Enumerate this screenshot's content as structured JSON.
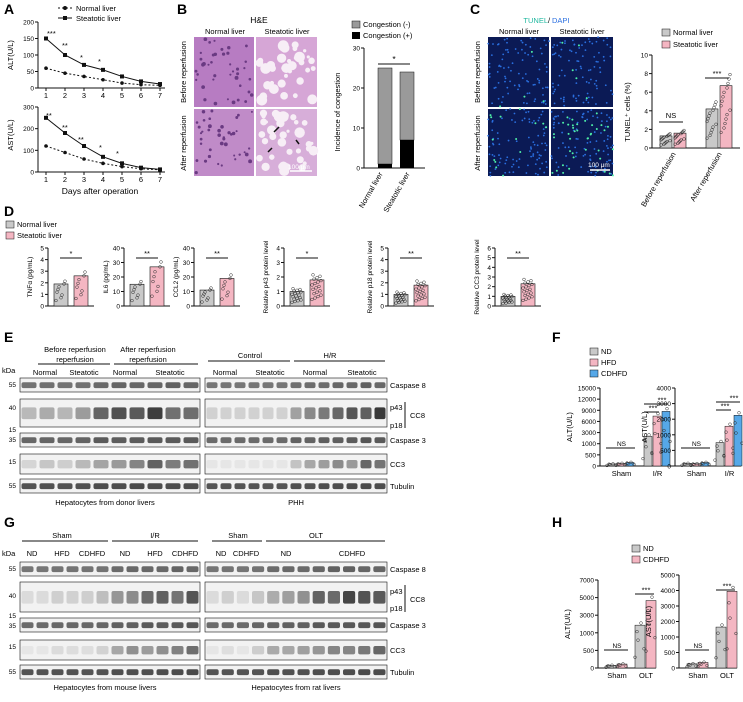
{
  "panel_letters": [
    "A",
    "B",
    "C",
    "D",
    "E",
    "F",
    "G",
    "H"
  ],
  "colors": {
    "normal": "#c9c9c9",
    "steatotic": "#f4b6c2",
    "nd": "#c9c9c9",
    "hfd": "#f4b6c2",
    "cdhfd": "#56a8e8",
    "congestion_neg": "#9a9a9a",
    "congestion_pos": "#000000",
    "tunel": "#22b8a0",
    "dapi": "#2a6fe0",
    "he": "#c98cc4"
  },
  "panelA": {
    "legend": [
      "Normal liver",
      "Steatotic liver"
    ],
    "alt": {
      "ylabel": "ALT(U/L)",
      "yticks": [
        "200",
        "150",
        "100",
        "50",
        "0"
      ],
      "sig": [
        "***",
        "**",
        "*",
        "*"
      ]
    },
    "ast": {
      "ylabel": "AST(U/L)",
      "yticks": [
        "300",
        "200",
        "100",
        "0"
      ],
      "sig": [
        "**",
        "**",
        "**",
        "*",
        "*"
      ]
    },
    "xticks": [
      "1",
      "2",
      "3",
      "4",
      "5",
      "6",
      "7"
    ],
    "xlabel": "Days after operation"
  },
  "panelB": {
    "header": "H&E",
    "cols": [
      "Normal liver",
      "Steatotic liver"
    ],
    "rows": [
      "Before reperfusion",
      "After reperfusion"
    ],
    "scale": "100 μm",
    "legend": [
      "Congestion (-)",
      "Congestion (+)"
    ],
    "ylabel": "Incidence of congestion",
    "yticks": [
      "30",
      "20",
      "10",
      "0"
    ],
    "sig": "*",
    "categories": [
      "Normal liver",
      "Steatotic liver"
    ]
  },
  "panelC": {
    "title_tunel": "TUNEL",
    "title_sep": "/",
    "title_dapi": "DAPI",
    "cols": [
      "Normal liver",
      "Steatotic liver"
    ],
    "rows": [
      "Before reperfusion",
      "After reperfusion"
    ],
    "scale": "100 μm",
    "legend": [
      "Normal liver",
      "Steatotic liver"
    ],
    "ylabel": "TUNEL⁺ cells (%)",
    "yticks": [
      "10",
      "8",
      "6",
      "4",
      "2",
      "0"
    ],
    "sig": [
      "NS",
      "***"
    ],
    "categories": [
      "Before reperfusion",
      "After reperfusion"
    ]
  },
  "panelD": {
    "legend": [
      "Normal liver",
      "Steatotic liver"
    ],
    "plots": [
      {
        "ylabel": "TNFα (pg/mL)",
        "yticks": [
          "5",
          "4",
          "3",
          "2",
          "1",
          "0"
        ],
        "sig": "*"
      },
      {
        "ylabel": "IL6 (pg/mL)",
        "yticks": [
          "40",
          "30",
          "20",
          "10",
          "0"
        ],
        "sig": "**"
      },
      {
        "ylabel": "CCL2 (pg/mL)",
        "yticks": [
          "40",
          "30",
          "20",
          "10",
          "0"
        ],
        "sig": "**"
      },
      {
        "ylabel": "Relative p43 protein level",
        "yticks": [
          "4",
          "3",
          "2",
          "1",
          "0"
        ],
        "sig": "*"
      },
      {
        "ylabel": "Relative p18 protein level",
        "yticks": [
          "5",
          "4",
          "3",
          "2",
          "1",
          "0"
        ],
        "sig": "**"
      },
      {
        "ylabel": "Relative CC3 protein level",
        "yticks": [
          "6",
          "5",
          "4",
          "3",
          "2",
          "1",
          "0"
        ],
        "sig": "**"
      }
    ]
  },
  "panelE": {
    "kda": "kDa",
    "group1": [
      "Before reperfusion",
      "After reperfusion"
    ],
    "group2": [
      "Control",
      "H/R"
    ],
    "sub": [
      "Normal",
      "Steatotic",
      "Normal",
      "Steatotic",
      "Normal",
      "Steatotic",
      "Normal",
      "Steatotic"
    ],
    "markers": [
      "55",
      "40",
      "15",
      "35",
      "15",
      "55"
    ],
    "bands": [
      "Caspase 8",
      "p43",
      "p18",
      "CC8",
      "Caspase 3",
      "CC3",
      "Tubulin"
    ],
    "captions": [
      "Hepatocytes from donor livers",
      "PHH"
    ]
  },
  "panelF": {
    "legend": [
      "ND",
      "HFD",
      "CDHFD"
    ],
    "alt": {
      "ylabel": "ALT(U/L)",
      "yticks": [
        "15000",
        "12000",
        "9000",
        "6000",
        "3000",
        "1000",
        "500",
        "0"
      ],
      "sig": [
        "NS",
        "***",
        "***"
      ]
    },
    "ast": {
      "ylabel": "AST(U/L)",
      "yticks": [
        "4000",
        "3000",
        "2000",
        "1000",
        "500",
        "0"
      ],
      "sig": [
        "NS",
        "***",
        "***"
      ]
    },
    "categories": [
      "Sham",
      "I/R"
    ]
  },
  "panelG": {
    "kda": "kDa",
    "groups1": [
      "Sham",
      "I/R"
    ],
    "sub1": [
      "ND",
      "HFD",
      "CDHFD",
      "ND",
      "HFD",
      "CDHFD"
    ],
    "groups2": [
      "Sham",
      "OLT"
    ],
    "sub2": [
      "ND",
      "CDHFD",
      "ND",
      "CDHFD"
    ],
    "markers": [
      "55",
      "40",
      "15",
      "35",
      "15",
      "55"
    ],
    "bands": [
      "Caspase 8",
      "p43",
      "p18",
      "CC8",
      "Caspase 3",
      "CC3",
      "Tubulin"
    ],
    "captions": [
      "Hepatocytes from mouse livers",
      "Hepatocytes from rat livers"
    ]
  },
  "panelH": {
    "legend": [
      "ND",
      "CDHFD"
    ],
    "alt": {
      "ylabel": "ALT(U/L)",
      "yticks": [
        "7000",
        "5000",
        "3000",
        "1000",
        "500",
        "0"
      ],
      "sig": [
        "NS",
        "***"
      ]
    },
    "ast": {
      "ylabel": "AST(U/L)",
      "yticks": [
        "5000",
        "4000",
        "3000",
        "2000",
        "1000",
        "500",
        "0"
      ],
      "sig": [
        "NS",
        "***"
      ]
    },
    "categories": [
      "Sham",
      "OLT"
    ]
  },
  "chart_data": [
    {
      "type": "line",
      "id": "A-ALT",
      "x": [
        1,
        2,
        3,
        4,
        5,
        6,
        7
      ],
      "ylabel": "ALT(U/L)",
      "ylim": [
        0,
        200
      ],
      "series": [
        {
          "name": "Normal liver",
          "values": [
            60,
            45,
            35,
            25,
            15,
            10,
            8
          ]
        },
        {
          "name": "Steatotic liver",
          "values": [
            150,
            100,
            70,
            55,
            35,
            20,
            12
          ]
        }
      ]
    },
    {
      "type": "line",
      "id": "A-AST",
      "x": [
        1,
        2,
        3,
        4,
        5,
        6,
        7
      ],
      "ylabel": "AST(U/L)",
      "xlabel": "Days after operation",
      "ylim": [
        0,
        300
      ],
      "series": [
        {
          "name": "Normal liver",
          "values": [
            120,
            90,
            60,
            40,
            25,
            15,
            10
          ]
        },
        {
          "name": "Steatotic liver",
          "values": [
            250,
            180,
            120,
            70,
            40,
            20,
            12
          ]
        }
      ]
    },
    {
      "type": "bar",
      "id": "B",
      "categories": [
        "Normal liver",
        "Steatotic liver"
      ],
      "ylabel": "Incidence of congestion",
      "ylim": [
        0,
        30
      ],
      "series": [
        {
          "name": "Congestion (-)",
          "values": [
            24,
            17
          ]
        },
        {
          "name": "Congestion (+)",
          "values": [
            1,
            7
          ]
        }
      ]
    },
    {
      "type": "bar",
      "id": "C",
      "categories": [
        "Before reperfusion",
        "After reperfusion"
      ],
      "ylabel": "TUNEL+ cells (%)",
      "ylim": [
        0,
        10
      ],
      "series": [
        {
          "name": "Normal liver",
          "values": [
            1.3,
            4.2
          ]
        },
        {
          "name": "Steatotic liver",
          "values": [
            1.6,
            6.7
          ]
        }
      ]
    },
    {
      "type": "bar",
      "id": "D-TNF",
      "categories": [
        "Normal liver",
        "Steatotic liver"
      ],
      "ylabel": "TNFα (pg/mL)",
      "ylim": [
        0,
        5
      ],
      "values": [
        1.9,
        2.6
      ]
    },
    {
      "type": "bar",
      "id": "D-IL6",
      "categories": [
        "Normal liver",
        "Steatotic liver"
      ],
      "ylabel": "IL6 (pg/mL)",
      "ylim": [
        0,
        40
      ],
      "values": [
        15,
        27
      ]
    },
    {
      "type": "bar",
      "id": "D-CCL2",
      "categories": [
        "Normal liver",
        "Steatotic liver"
      ],
      "ylabel": "CCL2 (pg/mL)",
      "ylim": [
        0,
        40
      ],
      "values": [
        11,
        19
      ]
    },
    {
      "type": "bar",
      "id": "D-p43",
      "categories": [
        "Normal liver",
        "Steatotic liver"
      ],
      "ylabel": "Relative p43 protein level",
      "ylim": [
        0,
        4
      ],
      "values": [
        1,
        1.8
      ]
    },
    {
      "type": "bar",
      "id": "D-p18",
      "categories": [
        "Normal liver",
        "Steatotic liver"
      ],
      "ylabel": "Relative p18 protein level",
      "ylim": [
        0,
        5
      ],
      "values": [
        1,
        1.8
      ]
    },
    {
      "type": "bar",
      "id": "D-CC3",
      "categories": [
        "Normal liver",
        "Steatotic liver"
      ],
      "ylabel": "Relative CC3 protein level",
      "ylim": [
        0,
        6
      ],
      "values": [
        1,
        2.3
      ]
    },
    {
      "type": "bar",
      "id": "F-ALT",
      "categories": [
        "Sham",
        "I/R"
      ],
      "ylabel": "ALT(U/L)",
      "ylim": [
        0,
        15000
      ],
      "series": [
        {
          "name": "ND",
          "values": [
            90,
            2600
          ]
        },
        {
          "name": "HFD",
          "values": [
            110,
            7800
          ]
        },
        {
          "name": "CDHFD",
          "values": [
            150,
            9000
          ]
        }
      ]
    },
    {
      "type": "bar",
      "id": "F-AST",
      "categories": [
        "Sham",
        "I/R"
      ],
      "ylabel": "AST(U/L)",
      "ylim": [
        0,
        4000
      ],
      "series": [
        {
          "name": "ND",
          "values": [
            110,
            1000
          ]
        },
        {
          "name": "HFD",
          "values": [
            100,
            1900
          ]
        },
        {
          "name": "CDHFD",
          "values": [
            150,
            2500
          ]
        }
      ]
    },
    {
      "type": "bar",
      "id": "H-ALT",
      "categories": [
        "Sham",
        "OLT"
      ],
      "ylabel": "ALT(U/L)",
      "ylim": [
        0,
        7000
      ],
      "series": [
        {
          "name": "ND",
          "values": [
            100,
            2600
          ]
        },
        {
          "name": "CDHFD",
          "values": [
            150,
            5000
          ]
        }
      ]
    },
    {
      "type": "bar",
      "id": "H-AST",
      "categories": [
        "Sham",
        "OLT"
      ],
      "ylabel": "AST(U/L)",
      "ylim": [
        0,
        5000
      ],
      "series": [
        {
          "name": "ND",
          "values": [
            150,
            1800
          ]
        },
        {
          "name": "CDHFD",
          "values": [
            200,
            4000
          ]
        }
      ]
    }
  ]
}
